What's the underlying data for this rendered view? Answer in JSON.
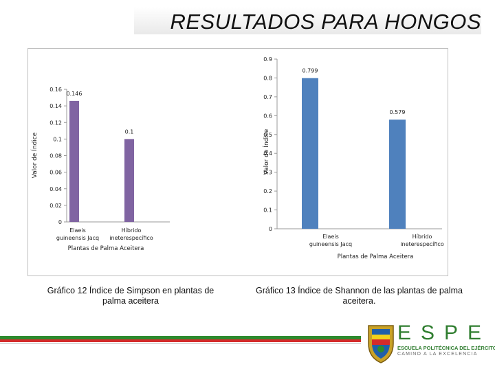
{
  "title": "RESULTADOS PARA HONGOS",
  "chart_data": [
    {
      "type": "bar",
      "categories": [
        "Elaeis guineensis Jacq",
        "Híbrido ineterespecífico"
      ],
      "values": [
        0.146,
        0.1
      ],
      "data_labels": [
        "0.146",
        "0.1"
      ],
      "xlabel": "Plantas de Palma Aceitera",
      "ylabel": "Valor de Índice",
      "ylim": [
        0,
        0.16
      ],
      "yticks": [
        "0",
        "0.02",
        "0.04",
        "0.06",
        "0.08",
        "0.1",
        "0.12",
        "0.14",
        "0.16"
      ],
      "bar_color": "#8064a2",
      "grid": false
    },
    {
      "type": "bar",
      "categories": [
        "Elaeis guineensis Jacq",
        "Híbrido ineterespecífico"
      ],
      "values": [
        0.799,
        0.579
      ],
      "data_labels": [
        "0.799",
        "0.579"
      ],
      "xlabel": "Plantas de Palma Aceitera",
      "ylabel": "Valor de Índice",
      "ylim": [
        0,
        0.9
      ],
      "yticks": [
        "0",
        "0.1",
        "0.2",
        "0.3",
        "0.4",
        "0.5",
        "0.6",
        "0.7",
        "0.8",
        "0.9"
      ],
      "bar_color": "#4f81bd",
      "grid": false
    }
  ],
  "captions": {
    "chart1": "Gráfico 12 Índice de Simpson en plantas de palma aceitera",
    "chart2": "Gráfico 13 Índice de Shannon de las plantas de palma aceitera."
  },
  "logo": {
    "text": "ESPE",
    "line1": "ESCUELA POLITÉCNICA DEL EJÉRCITO",
    "line2": "CAMINO A LA EXCELENCIA"
  },
  "colors": {
    "footer_green": "#2e8b2e",
    "footer_red": "#d42b2b",
    "logo_green": "#2f7d2f"
  }
}
